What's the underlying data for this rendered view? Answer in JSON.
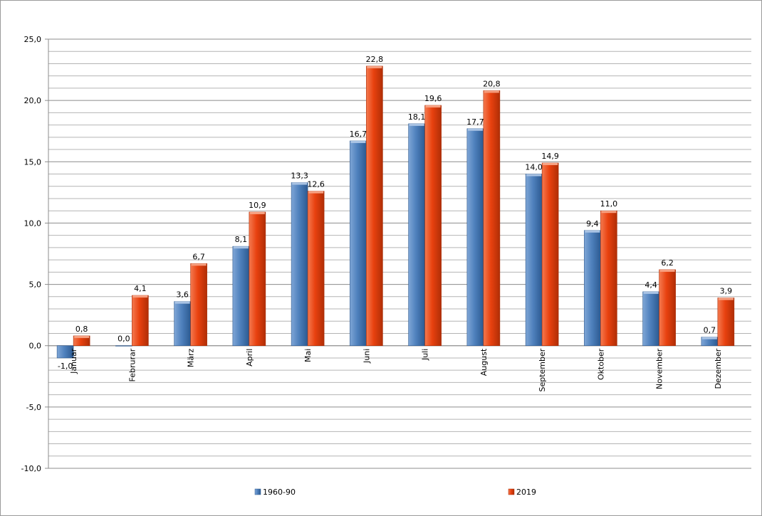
{
  "chart_data": {
    "type": "bar",
    "categories": [
      "Januar",
      "Februrar",
      "März",
      "April",
      "Mai",
      "Juni",
      "Juli",
      "August",
      "September",
      "Oktober",
      "November",
      "Dezember"
    ],
    "series": [
      {
        "name": "1960-90",
        "color": "#4f81bd",
        "values": [
          -1.0,
          0.0,
          3.6,
          8.1,
          13.3,
          16.7,
          18.1,
          17.7,
          14.0,
          9.4,
          4.4,
          0.7
        ],
        "labels": [
          "-1,0",
          "0,0",
          "3,6",
          "8,1",
          "13,3",
          "16,7",
          "18,1",
          "17,7",
          "14,0",
          "9,4",
          "4,4",
          "0,7"
        ]
      },
      {
        "name": "2019",
        "color": "#e8410f",
        "values": [
          0.8,
          4.1,
          6.7,
          10.9,
          12.6,
          22.8,
          19.6,
          20.8,
          14.9,
          11.0,
          6.2,
          3.9
        ],
        "labels": [
          "0,8",
          "4,1",
          "6,7",
          "10,9",
          "12,6",
          "22,8",
          "19,6",
          "20,8",
          "14,9",
          "11,0",
          "6,2",
          "3,9"
        ]
      }
    ],
    "ylim": [
      -10,
      25
    ],
    "yticks": [
      25,
      20,
      15,
      10,
      5,
      0,
      -5,
      -10
    ],
    "ytick_labels": [
      "25,0",
      "20,0",
      "15,0",
      "10,0",
      "5,0",
      "0,0",
      "-5,0",
      "-10,0"
    ],
    "minor_grid_step": 1,
    "grid": true,
    "legend_position": "bottom",
    "title": "",
    "xlabel": "",
    "ylabel": ""
  }
}
